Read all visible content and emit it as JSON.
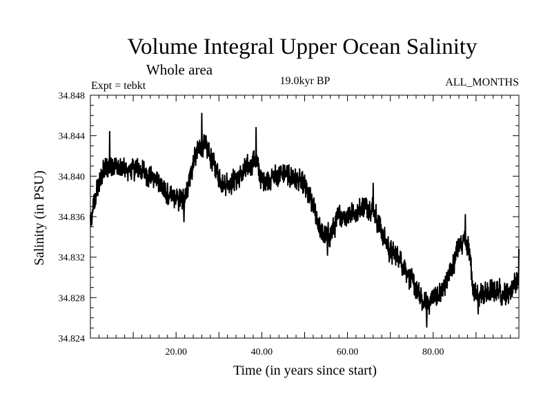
{
  "chart_data": {
    "type": "line",
    "title": "Volume Integral Upper Ocean Salinity",
    "subtitle": "Whole area",
    "experiment": "Expt = tebkt",
    "period": "19.0kyr BP",
    "months": "ALL_MONTHS",
    "xlabel": "Time (in years since start)",
    "ylabel": "Salinity (in PSU)",
    "xlim": [
      0,
      100
    ],
    "ylim": [
      34.824,
      34.848
    ],
    "xticks": [
      20,
      40,
      60,
      80
    ],
    "xtick_labels": [
      "20.00",
      "40.00",
      "60.00",
      "80.00"
    ],
    "yticks": [
      34.824,
      34.828,
      34.832,
      34.836,
      34.84,
      34.844,
      34.848
    ],
    "ytick_labels": [
      "34.824",
      "34.828",
      "34.832",
      "34.836",
      "34.840",
      "34.844",
      "34.848"
    ],
    "series": [
      {
        "name": "Salinity",
        "color": "#000000",
        "points_per_year": 12,
        "trend": [
          [
            0.0,
            34.8355
          ],
          [
            1.5,
            34.8385
          ],
          [
            3.0,
            34.8405
          ],
          [
            5.0,
            34.8412
          ],
          [
            8.0,
            34.8405
          ],
          [
            11.0,
            34.8408
          ],
          [
            14.0,
            34.84
          ],
          [
            16.0,
            34.8395
          ],
          [
            18.0,
            34.838
          ],
          [
            20.0,
            34.8378
          ],
          [
            21.5,
            34.8375
          ],
          [
            23.0,
            34.8395
          ],
          [
            24.5,
            34.842
          ],
          [
            26.0,
            34.8432
          ],
          [
            27.5,
            34.8425
          ],
          [
            29.5,
            34.8405
          ],
          [
            31.0,
            34.8392
          ],
          [
            33.0,
            34.8395
          ],
          [
            35.0,
            34.84
          ],
          [
            37.0,
            34.841
          ],
          [
            38.5,
            34.8418
          ],
          [
            40.0,
            34.8395
          ],
          [
            42.0,
            34.8398
          ],
          [
            45.0,
            34.8402
          ],
          [
            48.0,
            34.8398
          ],
          [
            50.0,
            34.839
          ],
          [
            52.0,
            34.837
          ],
          [
            54.0,
            34.8342
          ],
          [
            56.0,
            34.8342
          ],
          [
            58.0,
            34.836
          ],
          [
            60.0,
            34.8362
          ],
          [
            62.0,
            34.8365
          ],
          [
            64.0,
            34.837
          ],
          [
            66.0,
            34.8368
          ],
          [
            68.0,
            34.8345
          ],
          [
            70.0,
            34.8325
          ],
          [
            72.0,
            34.832
          ],
          [
            74.0,
            34.8305
          ],
          [
            76.0,
            34.8288
          ],
          [
            78.0,
            34.8272
          ],
          [
            80.0,
            34.828
          ],
          [
            82.0,
            34.8285
          ],
          [
            84.0,
            34.8305
          ],
          [
            86.0,
            34.833
          ],
          [
            87.5,
            34.834
          ],
          [
            88.5,
            34.8325
          ],
          [
            89.5,
            34.8282
          ],
          [
            91.0,
            34.8283
          ],
          [
            93.0,
            34.8285
          ],
          [
            95.0,
            34.8287
          ],
          [
            97.0,
            34.8283
          ],
          [
            98.5,
            34.829
          ],
          [
            100.0,
            34.83
          ]
        ],
        "peaks": [
          [
            26.0,
            34.8462
          ],
          [
            38.7,
            34.8448
          ],
          [
            4.5,
            34.8444
          ],
          [
            87.5,
            34.8362
          ],
          [
            66.0,
            34.8393
          ],
          [
            100.0,
            34.8328
          ]
        ],
        "troughs": [
          [
            78.5,
            34.8251
          ],
          [
            21.8,
            34.8355
          ],
          [
            55.3,
            34.8322
          ],
          [
            90.5,
            34.8264
          ],
          [
            0.3,
            34.8352
          ]
        ],
        "noise_amplitude": 0.0011
      }
    ]
  }
}
